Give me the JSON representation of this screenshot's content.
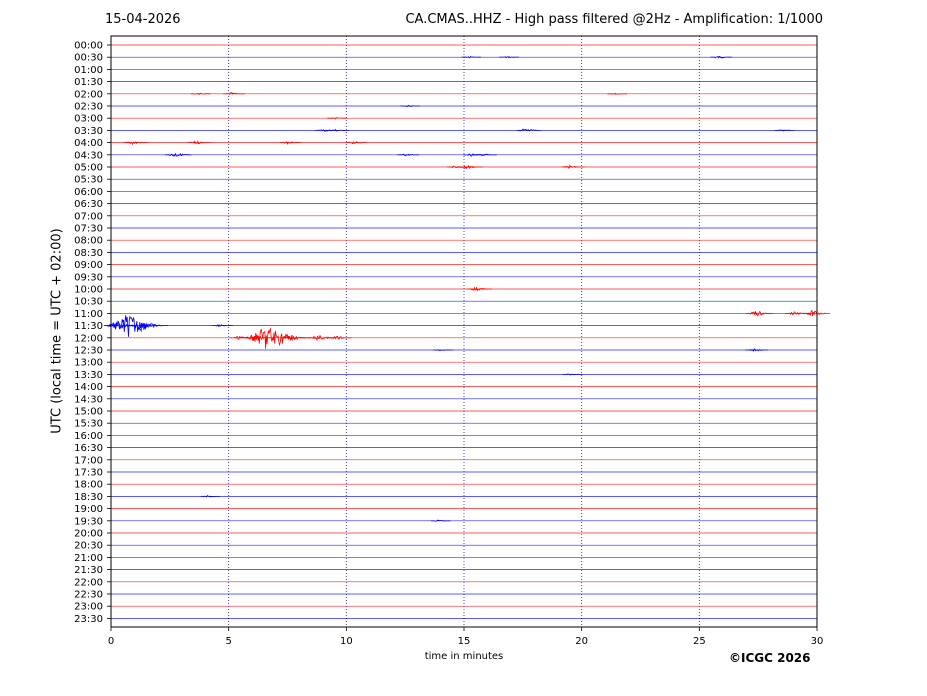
{
  "header": {
    "date": "15-04-2026",
    "title": "CA.CMAS..HHZ - High pass filtered @2Hz - Amplification: 1/1000"
  },
  "footer": {
    "copyright": "©ICGC 2026"
  },
  "chart_data": {
    "type": "line",
    "xlabel": "time in minutes",
    "ylabel": "UTC (local time = UTC + 02:00)",
    "xlim": [
      0,
      30
    ],
    "x_ticks": [
      0,
      5,
      10,
      15,
      20,
      25,
      30
    ],
    "row_labels": [
      "00:00",
      "00:30",
      "01:00",
      "01:30",
      "02:00",
      "02:30",
      "03:00",
      "03:30",
      "04:00",
      "04:30",
      "05:00",
      "05:30",
      "06:00",
      "06:30",
      "07:00",
      "07:30",
      "08:00",
      "08:30",
      "09:00",
      "09:30",
      "10:00",
      "10:30",
      "11:00",
      "11:30",
      "12:00",
      "12:30",
      "13:00",
      "13:30",
      "14:00",
      "14:30",
      "15:00",
      "15:30",
      "16:00",
      "16:30",
      "17:00",
      "17:30",
      "18:00",
      "18:30",
      "19:00",
      "19:30",
      "20:00",
      "20:30",
      "21:00",
      "21:30",
      "22:00",
      "22:30",
      "23:00",
      "23:30"
    ],
    "row_colors": [
      "#ff0000",
      "#0000ff"
    ],
    "vertical_gridlines": [
      5,
      10,
      15,
      20,
      25
    ],
    "events": [
      {
        "row": "00:30",
        "x": 15.2,
        "amp": 0.1
      },
      {
        "row": "00:30",
        "x": 16.8,
        "amp": 0.1
      },
      {
        "row": "00:30",
        "x": 25.8,
        "amp": 0.15
      },
      {
        "row": "02:00",
        "x": 3.7,
        "amp": 0.1
      },
      {
        "row": "02:00",
        "x": 5.1,
        "amp": 0.15
      },
      {
        "row": "02:00",
        "x": 21.4,
        "amp": 0.1
      },
      {
        "row": "02:30",
        "x": 12.6,
        "amp": 0.1
      },
      {
        "row": "03:00",
        "x": 9.5,
        "amp": 0.1
      },
      {
        "row": "03:30",
        "x": 9.0,
        "amp": 0.15
      },
      {
        "row": "03:30",
        "x": 9.5,
        "amp": 0.15
      },
      {
        "row": "03:30",
        "x": 17.6,
        "amp": 0.25
      },
      {
        "row": "03:30",
        "x": 28.5,
        "amp": 0.1
      },
      {
        "row": "04:00",
        "x": 0.9,
        "amp": 0.25
      },
      {
        "row": "04:00",
        "x": 3.6,
        "amp": 0.2
      },
      {
        "row": "04:00",
        "x": 7.5,
        "amp": 0.15
      },
      {
        "row": "04:00",
        "x": 10.3,
        "amp": 0.15
      },
      {
        "row": "04:30",
        "x": 2.7,
        "amp": 0.3
      },
      {
        "row": "04:30",
        "x": 12.5,
        "amp": 0.15
      },
      {
        "row": "04:30",
        "x": 15.3,
        "amp": 0.15
      },
      {
        "row": "04:30",
        "x": 15.8,
        "amp": 0.15
      },
      {
        "row": "05:00",
        "x": 14.6,
        "amp": 0.15
      },
      {
        "row": "05:00",
        "x": 15.1,
        "amp": 0.25
      },
      {
        "row": "05:00",
        "x": 19.5,
        "amp": 0.2
      },
      {
        "row": "10:00",
        "x": 15.5,
        "amp": 0.25
      },
      {
        "row": "11:00",
        "x": 27.4,
        "amp": 0.35
      },
      {
        "row": "11:00",
        "x": 29.0,
        "amp": 0.2
      },
      {
        "row": "11:00",
        "x": 29.8,
        "amp": 0.35
      },
      {
        "row": "11:30",
        "x": 0.2,
        "amp": 0.5
      },
      {
        "row": "11:30",
        "x": 0.7,
        "amp": 1.4
      },
      {
        "row": "11:30",
        "x": 1.2,
        "amp": 0.5
      },
      {
        "row": "11:30",
        "x": 4.6,
        "amp": 0.15
      },
      {
        "row": "12:00",
        "x": 5.4,
        "amp": 0.2
      },
      {
        "row": "12:00",
        "x": 6.2,
        "amp": 0.3
      },
      {
        "row": "12:00",
        "x": 6.6,
        "amp": 1.6
      },
      {
        "row": "12:00",
        "x": 7.6,
        "amp": 0.3
      },
      {
        "row": "12:00",
        "x": 8.8,
        "amp": 0.35
      },
      {
        "row": "12:00",
        "x": 9.6,
        "amp": 0.2
      },
      {
        "row": "12:30",
        "x": 14.0,
        "amp": 0.1
      },
      {
        "row": "12:30",
        "x": 27.3,
        "amp": 0.2
      },
      {
        "row": "13:30",
        "x": 19.5,
        "amp": 0.1
      },
      {
        "row": "18:30",
        "x": 4.1,
        "amp": 0.1
      },
      {
        "row": "19:30",
        "x": 13.9,
        "amp": 0.1
      }
    ]
  }
}
